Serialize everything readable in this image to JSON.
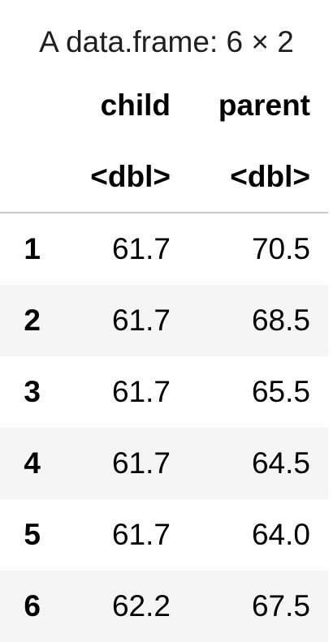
{
  "caption": "A data.frame: 6 × 2",
  "columns": [
    {
      "name": "child",
      "type": "<dbl>"
    },
    {
      "name": "parent",
      "type": "<dbl>"
    }
  ],
  "rows": [
    {
      "index": "1",
      "child": "61.7",
      "parent": "70.5"
    },
    {
      "index": "2",
      "child": "61.7",
      "parent": "68.5"
    },
    {
      "index": "3",
      "child": "61.7",
      "parent": "65.5"
    },
    {
      "index": "4",
      "child": "61.7",
      "parent": "64.5"
    },
    {
      "index": "5",
      "child": "61.7",
      "parent": "64.0"
    },
    {
      "index": "6",
      "child": "62.2",
      "parent": "67.5"
    }
  ],
  "colors": {
    "stripe": "#f5f5f5",
    "rule": "#c8c8c8",
    "text": "#000000"
  }
}
